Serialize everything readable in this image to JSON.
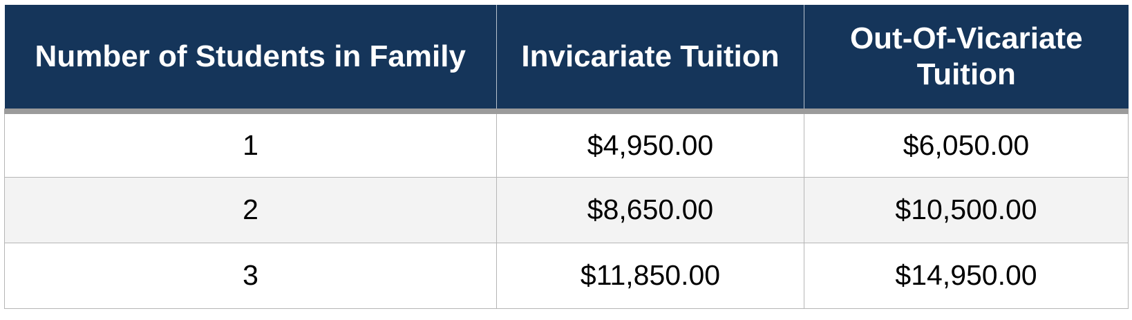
{
  "table": {
    "headers": [
      "Number of Students in Family",
      "Invicariate Tuition",
      "Out-Of-Vicariate Tuition"
    ],
    "rows": [
      {
        "students": "1",
        "invicariate": "$4,950.00",
        "out_of_vicariate": "$6,050.00"
      },
      {
        "students": "2",
        "invicariate": "$8,650.00",
        "out_of_vicariate": "$10,500.00"
      },
      {
        "students": "3",
        "invicariate": "$11,850.00",
        "out_of_vicariate": "$14,950.00"
      }
    ]
  },
  "colors": {
    "header_background": "#15355a",
    "header_text": "#ffffff",
    "header_rule": "#9b9b9b",
    "alt_row_background": "#f3f3f3",
    "cell_border": "#b5b5b5"
  }
}
